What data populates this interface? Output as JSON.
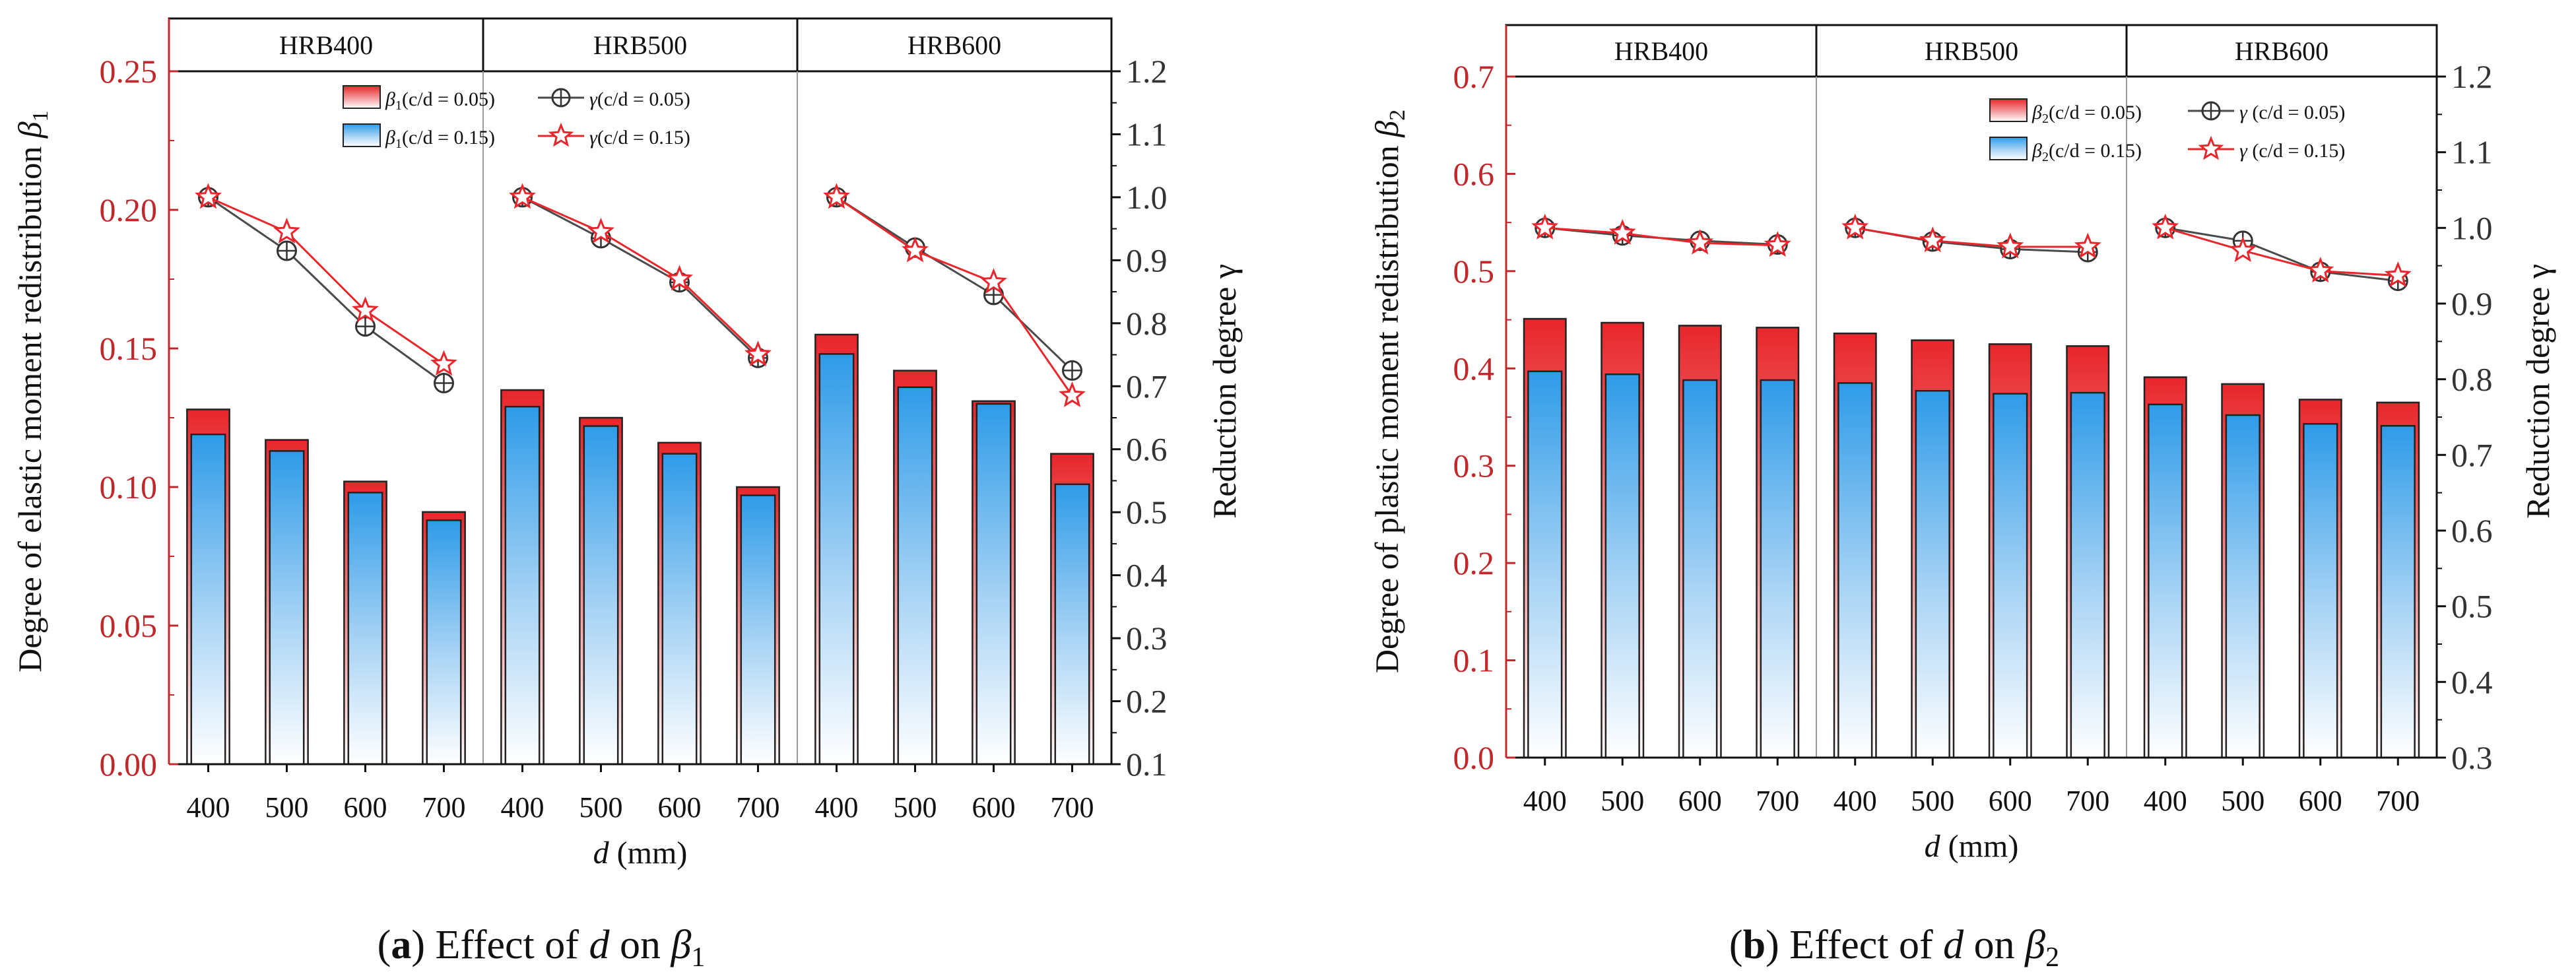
{
  "colors": {
    "red_axis": "#c0282b",
    "red_series": "#e8262b",
    "blue_series": "#2e9be8",
    "gray_series": "#4a4a4a",
    "bar_border": "#222222"
  },
  "chart_data": [
    {
      "type": "bar",
      "panel": "a",
      "groups": [
        "HRB400",
        "HRB500",
        "HRB600"
      ],
      "categories": [
        "400",
        "500",
        "600",
        "700"
      ],
      "xlabel_var": "d",
      "xlabel_unit": "(mm)",
      "ylabel_left": "Degree of elastic moment redistribution",
      "ylabel_left_sym": "β",
      "ylabel_left_sub": "1",
      "ylabel_right": "Reduction degree γ",
      "ylim_left": [
        0,
        0.25
      ],
      "yticks_left": [
        "0.00",
        "0.05",
        "0.10",
        "0.15",
        "0.20",
        "0.25"
      ],
      "ylim_right": [
        0.1,
        1.2
      ],
      "yticks_right": [
        "0.1",
        "0.2",
        "0.3",
        "0.4",
        "0.5",
        "0.6",
        "0.7",
        "0.8",
        "0.9",
        "1.0",
        "1.1",
        "1.2"
      ],
      "bar_series": [
        {
          "name": "β1(c/d = 0.05)",
          "legend": {
            "sym": "β",
            "sub": "1",
            "rest": "(c/d = 0.05)"
          },
          "values": [
            [
              0.128,
              0.117,
              0.102,
              0.091
            ],
            [
              0.135,
              0.125,
              0.116,
              0.1
            ],
            [
              0.155,
              0.142,
              0.131,
              0.112
            ]
          ]
        },
        {
          "name": "β1(c/d = 0.15)",
          "legend": {
            "sym": "β",
            "sub": "1",
            "rest": "(c/d = 0.15)"
          },
          "values": [
            [
              0.119,
              0.113,
              0.098,
              0.088
            ],
            [
              0.129,
              0.122,
              0.112,
              0.097
            ],
            [
              0.148,
              0.136,
              0.13,
              0.101
            ]
          ]
        }
      ],
      "line_series": [
        {
          "name": "γ(c/d = 0.05)",
          "legend": {
            "sym": "γ",
            "rest": "(c/d = 0.05)"
          },
          "marker": "circle-cross",
          "values": [
            [
              1.0,
              0.915,
              0.795,
              0.705
            ],
            [
              1.0,
              0.935,
              0.865,
              0.745
            ],
            [
              1.0,
              0.92,
              0.845,
              0.725
            ]
          ]
        },
        {
          "name": "γ(c/d = 0.15)",
          "legend": {
            "sym": "γ",
            "rest": "(c/d = 0.15)"
          },
          "marker": "star",
          "values": [
            [
              1.0,
              0.945,
              0.82,
              0.735
            ],
            [
              1.0,
              0.945,
              0.87,
              0.75
            ],
            [
              1.0,
              0.915,
              0.865,
              0.685
            ]
          ]
        }
      ],
      "caption": {
        "label": "a",
        "text": " Effect of ",
        "var": "d",
        "mid": " on ",
        "sym": "β",
        "sub": "1"
      }
    },
    {
      "type": "bar",
      "panel": "b",
      "groups": [
        "HRB400",
        "HRB500",
        "HRB600"
      ],
      "categories": [
        "400",
        "500",
        "600",
        "700"
      ],
      "xlabel_var": "d",
      "xlabel_unit": "(mm)",
      "ylabel_left": "Degree of plastic moment redistribution",
      "ylabel_left_sym": "β",
      "ylabel_left_sub": "2",
      "ylabel_right": "Reduction degree γ",
      "ylim_left": [
        0,
        0.7
      ],
      "yticks_left": [
        "0.0",
        "0.1",
        "0.2",
        "0.3",
        "0.4",
        "0.5",
        "0.6",
        "0.7"
      ],
      "ylim_right": [
        0.3,
        1.2
      ],
      "yticks_right": [
        "0.3",
        "0.4",
        "0.5",
        "0.6",
        "0.7",
        "0.8",
        "0.9",
        "1.0",
        "1.1",
        "1.2"
      ],
      "bar_series": [
        {
          "name": "β2(c/d = 0.05)",
          "legend": {
            "sym": "β",
            "sub": "2",
            "rest": "(c/d = 0.05)"
          },
          "values": [
            [
              0.451,
              0.447,
              0.444,
              0.442
            ],
            [
              0.436,
              0.429,
              0.425,
              0.423
            ],
            [
              0.391,
              0.384,
              0.368,
              0.365
            ]
          ]
        },
        {
          "name": "β2(c/d = 0.15)",
          "legend": {
            "sym": "β",
            "sub": "2",
            "rest": "(c/d = 0.15)"
          },
          "values": [
            [
              0.397,
              0.394,
              0.388,
              0.388
            ],
            [
              0.385,
              0.377,
              0.374,
              0.375
            ],
            [
              0.363,
              0.352,
              0.343,
              0.341
            ]
          ]
        }
      ],
      "line_series": [
        {
          "name": "γ (c/d = 0.05)",
          "legend": {
            "sym": "γ",
            "rest": " (c/d = 0.05)"
          },
          "marker": "circle-cross",
          "values": [
            [
              1.0,
              0.99,
              0.983,
              0.978
            ],
            [
              1.0,
              0.982,
              0.972,
              0.968
            ],
            [
              1.0,
              0.983,
              0.942,
              0.93
            ]
          ]
        },
        {
          "name": "γ (c/d = 0.15)",
          "legend": {
            "sym": "γ",
            "rest": " (c/d = 0.15)"
          },
          "marker": "star",
          "values": [
            [
              1.0,
              0.993,
              0.98,
              0.977
            ],
            [
              1.0,
              0.983,
              0.975,
              0.975
            ],
            [
              1.0,
              0.97,
              0.943,
              0.937
            ]
          ]
        }
      ],
      "caption": {
        "label": "b",
        "text": " Effect of ",
        "var": "d",
        "mid": " on ",
        "sym": "β",
        "sub": "2"
      }
    }
  ]
}
